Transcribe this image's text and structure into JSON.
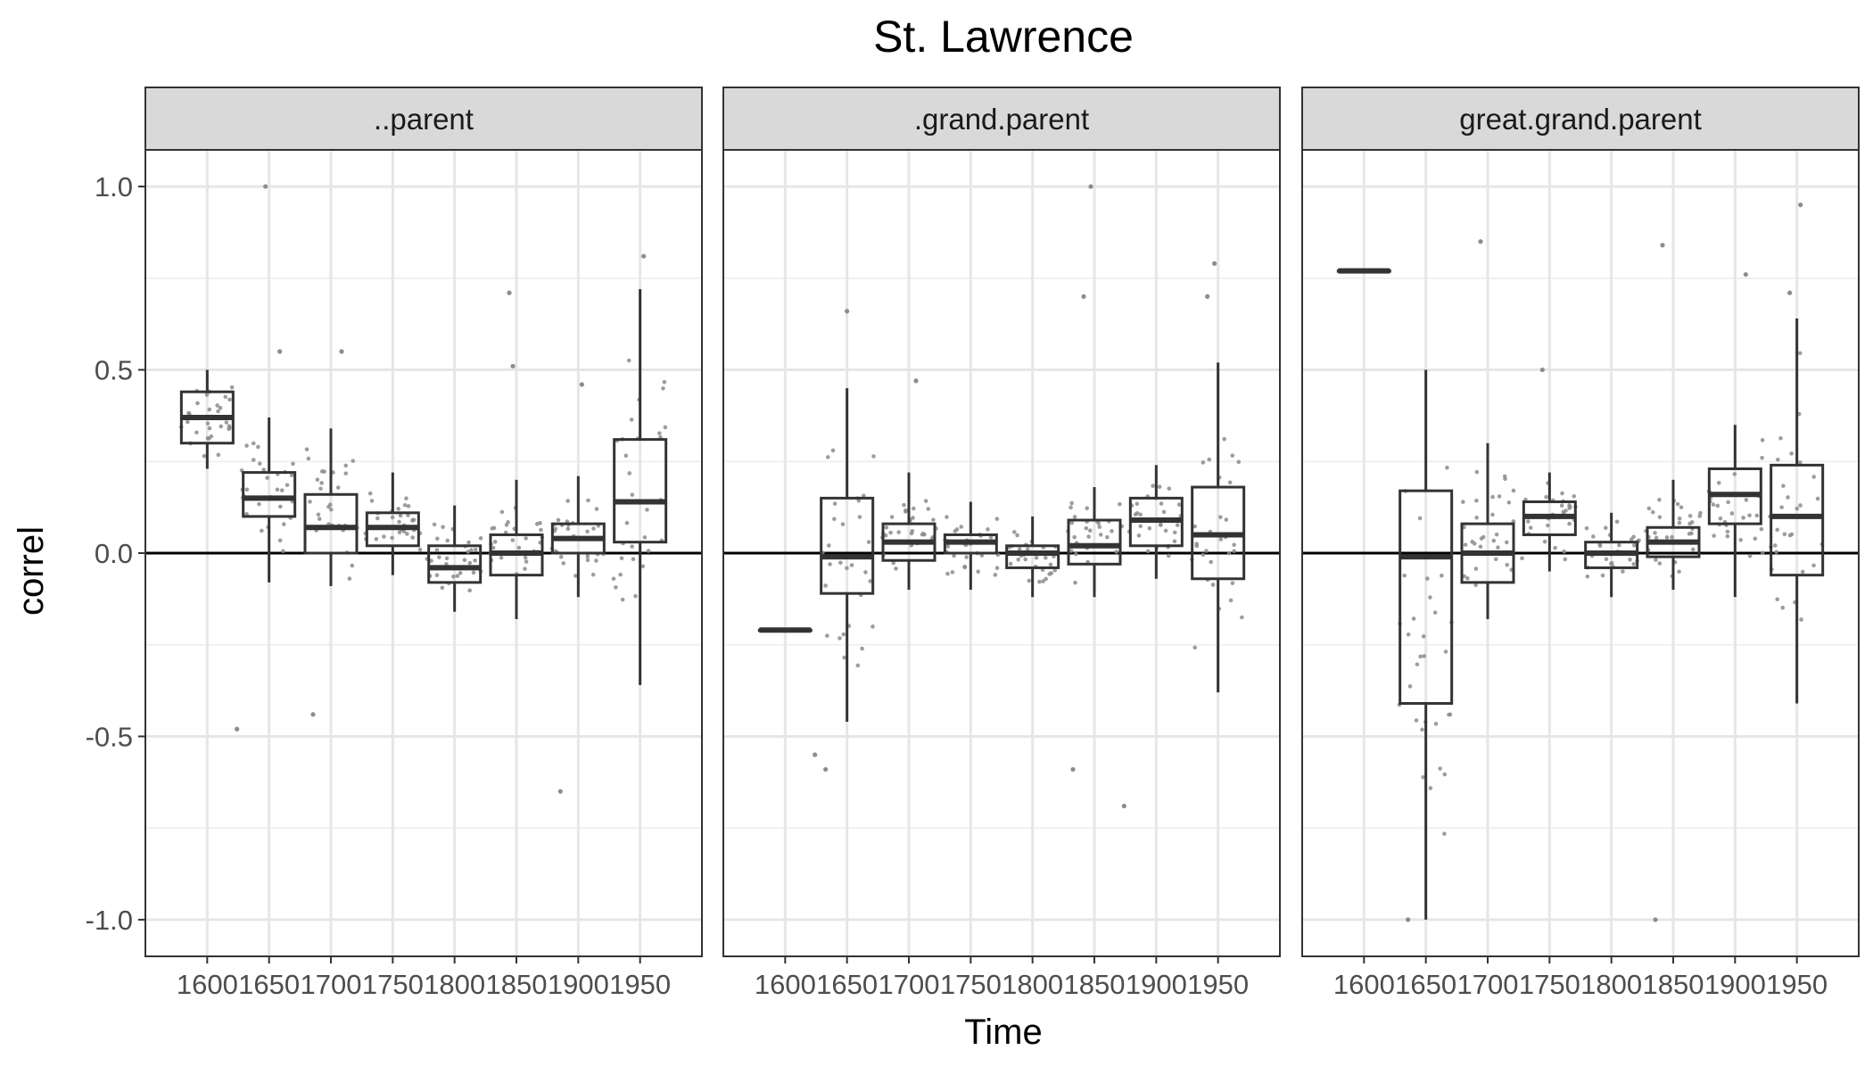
{
  "chart_data": {
    "type": "boxplot",
    "title": "St. Lawrence",
    "xlabel": "Time",
    "ylabel": "correl",
    "ylim": [
      -1.1,
      1.1
    ],
    "yticks": [
      -1.0,
      -0.5,
      0.0,
      0.5,
      1.0
    ],
    "ytick_labels": [
      "-1.0",
      "-0.5",
      "0.0",
      "0.5",
      "1.0"
    ],
    "categories": [
      "1600",
      "1650",
      "1700",
      "1750",
      "1800",
      "1850",
      "1900",
      "1950"
    ],
    "reference_line": 0,
    "grid": true,
    "points_color": "#8c8c8c",
    "box_color": "#333333",
    "strip_fill": "#d9d9d9",
    "panels": [
      {
        "label": "..parent",
        "boxes": [
          {
            "x": "1600",
            "lower_whisker": 0.23,
            "q1": 0.3,
            "median": 0.37,
            "q3": 0.44,
            "upper_whisker": 0.5
          },
          {
            "x": "1650",
            "lower_whisker": -0.08,
            "q1": 0.1,
            "median": 0.15,
            "q3": 0.22,
            "upper_whisker": 0.37
          },
          {
            "x": "1700",
            "lower_whisker": -0.09,
            "q1": 0.0,
            "median": 0.07,
            "q3": 0.16,
            "upper_whisker": 0.34
          },
          {
            "x": "1750",
            "lower_whisker": -0.06,
            "q1": 0.02,
            "median": 0.07,
            "q3": 0.11,
            "upper_whisker": 0.22
          },
          {
            "x": "1800",
            "lower_whisker": -0.16,
            "q1": -0.08,
            "median": -0.04,
            "q3": 0.02,
            "upper_whisker": 0.13
          },
          {
            "x": "1850",
            "lower_whisker": -0.18,
            "q1": -0.06,
            "median": 0.0,
            "q3": 0.05,
            "upper_whisker": 0.2
          },
          {
            "x": "1900",
            "lower_whisker": -0.12,
            "q1": 0.0,
            "median": 0.04,
            "q3": 0.08,
            "upper_whisker": 0.21
          },
          {
            "x": "1950",
            "lower_whisker": -0.36,
            "q1": 0.03,
            "median": 0.14,
            "q3": 0.31,
            "upper_whisker": 0.72
          }
        ],
        "outliers": [
          {
            "x": "1650",
            "y": 1.0
          },
          {
            "x": "1650",
            "y": 0.55
          },
          {
            "x": "1650",
            "y": -0.48
          },
          {
            "x": "1700",
            "y": 0.55
          },
          {
            "x": "1700",
            "y": -0.44
          },
          {
            "x": "1850",
            "y": 0.71
          },
          {
            "x": "1850",
            "y": 0.51
          },
          {
            "x": "1900",
            "y": 0.46
          },
          {
            "x": "1900",
            "y": -0.65
          },
          {
            "x": "1950",
            "y": 0.81
          }
        ]
      },
      {
        "label": ".grand.parent",
        "boxes": [
          {
            "x": "1600",
            "lower_whisker": -0.21,
            "q1": -0.21,
            "median": -0.21,
            "q3": -0.21,
            "upper_whisker": -0.21
          },
          {
            "x": "1650",
            "lower_whisker": -0.46,
            "q1": -0.11,
            "median": -0.01,
            "q3": 0.15,
            "upper_whisker": 0.45
          },
          {
            "x": "1700",
            "lower_whisker": -0.1,
            "q1": -0.02,
            "median": 0.03,
            "q3": 0.08,
            "upper_whisker": 0.22
          },
          {
            "x": "1750",
            "lower_whisker": -0.1,
            "q1": 0.0,
            "median": 0.03,
            "q3": 0.05,
            "upper_whisker": 0.14
          },
          {
            "x": "1800",
            "lower_whisker": -0.12,
            "q1": -0.04,
            "median": 0.0,
            "q3": 0.02,
            "upper_whisker": 0.1
          },
          {
            "x": "1850",
            "lower_whisker": -0.12,
            "q1": -0.03,
            "median": 0.02,
            "q3": 0.09,
            "upper_whisker": 0.18
          },
          {
            "x": "1900",
            "lower_whisker": -0.07,
            "q1": 0.02,
            "median": 0.09,
            "q3": 0.15,
            "upper_whisker": 0.24
          },
          {
            "x": "1950",
            "lower_whisker": -0.38,
            "q1": -0.07,
            "median": 0.05,
            "q3": 0.18,
            "upper_whisker": 0.52
          }
        ],
        "outliers": [
          {
            "x": "1650",
            "y": 0.66
          },
          {
            "x": "1650",
            "y": -0.59
          },
          {
            "x": "1650",
            "y": -0.55
          },
          {
            "x": "1700",
            "y": 0.47
          },
          {
            "x": "1850",
            "y": 1.0
          },
          {
            "x": "1850",
            "y": 0.7
          },
          {
            "x": "1850",
            "y": -0.59
          },
          {
            "x": "1900",
            "y": -0.69
          },
          {
            "x": "1950",
            "y": 0.79
          },
          {
            "x": "1950",
            "y": 0.7
          }
        ]
      },
      {
        "label": "great.grand.parent",
        "boxes": [
          {
            "x": "1600",
            "lower_whisker": 0.77,
            "q1": 0.77,
            "median": 0.77,
            "q3": 0.77,
            "upper_whisker": 0.77
          },
          {
            "x": "1650",
            "lower_whisker": -1.0,
            "q1": -0.41,
            "median": -0.01,
            "q3": 0.17,
            "upper_whisker": 0.5
          },
          {
            "x": "1700",
            "lower_whisker": -0.18,
            "q1": -0.08,
            "median": 0.0,
            "q3": 0.08,
            "upper_whisker": 0.3
          },
          {
            "x": "1750",
            "lower_whisker": -0.05,
            "q1": 0.05,
            "median": 0.1,
            "q3": 0.14,
            "upper_whisker": 0.22
          },
          {
            "x": "1800",
            "lower_whisker": -0.12,
            "q1": -0.04,
            "median": 0.0,
            "q3": 0.03,
            "upper_whisker": 0.11
          },
          {
            "x": "1850",
            "lower_whisker": -0.1,
            "q1": -0.01,
            "median": 0.03,
            "q3": 0.07,
            "upper_whisker": 0.2
          },
          {
            "x": "1900",
            "lower_whisker": -0.12,
            "q1": 0.08,
            "median": 0.16,
            "q3": 0.23,
            "upper_whisker": 0.35
          },
          {
            "x": "1950",
            "lower_whisker": -0.41,
            "q1": -0.06,
            "median": 0.1,
            "q3": 0.24,
            "upper_whisker": 0.64
          }
        ],
        "outliers": [
          {
            "x": "1650",
            "y": -1.0
          },
          {
            "x": "1700",
            "y": 0.85
          },
          {
            "x": "1750",
            "y": 0.5
          },
          {
            "x": "1850",
            "y": 0.84
          },
          {
            "x": "1850",
            "y": -1.0
          },
          {
            "x": "1900",
            "y": 0.76
          },
          {
            "x": "1950",
            "y": 0.95
          },
          {
            "x": "1950",
            "y": 0.71
          }
        ]
      }
    ]
  }
}
